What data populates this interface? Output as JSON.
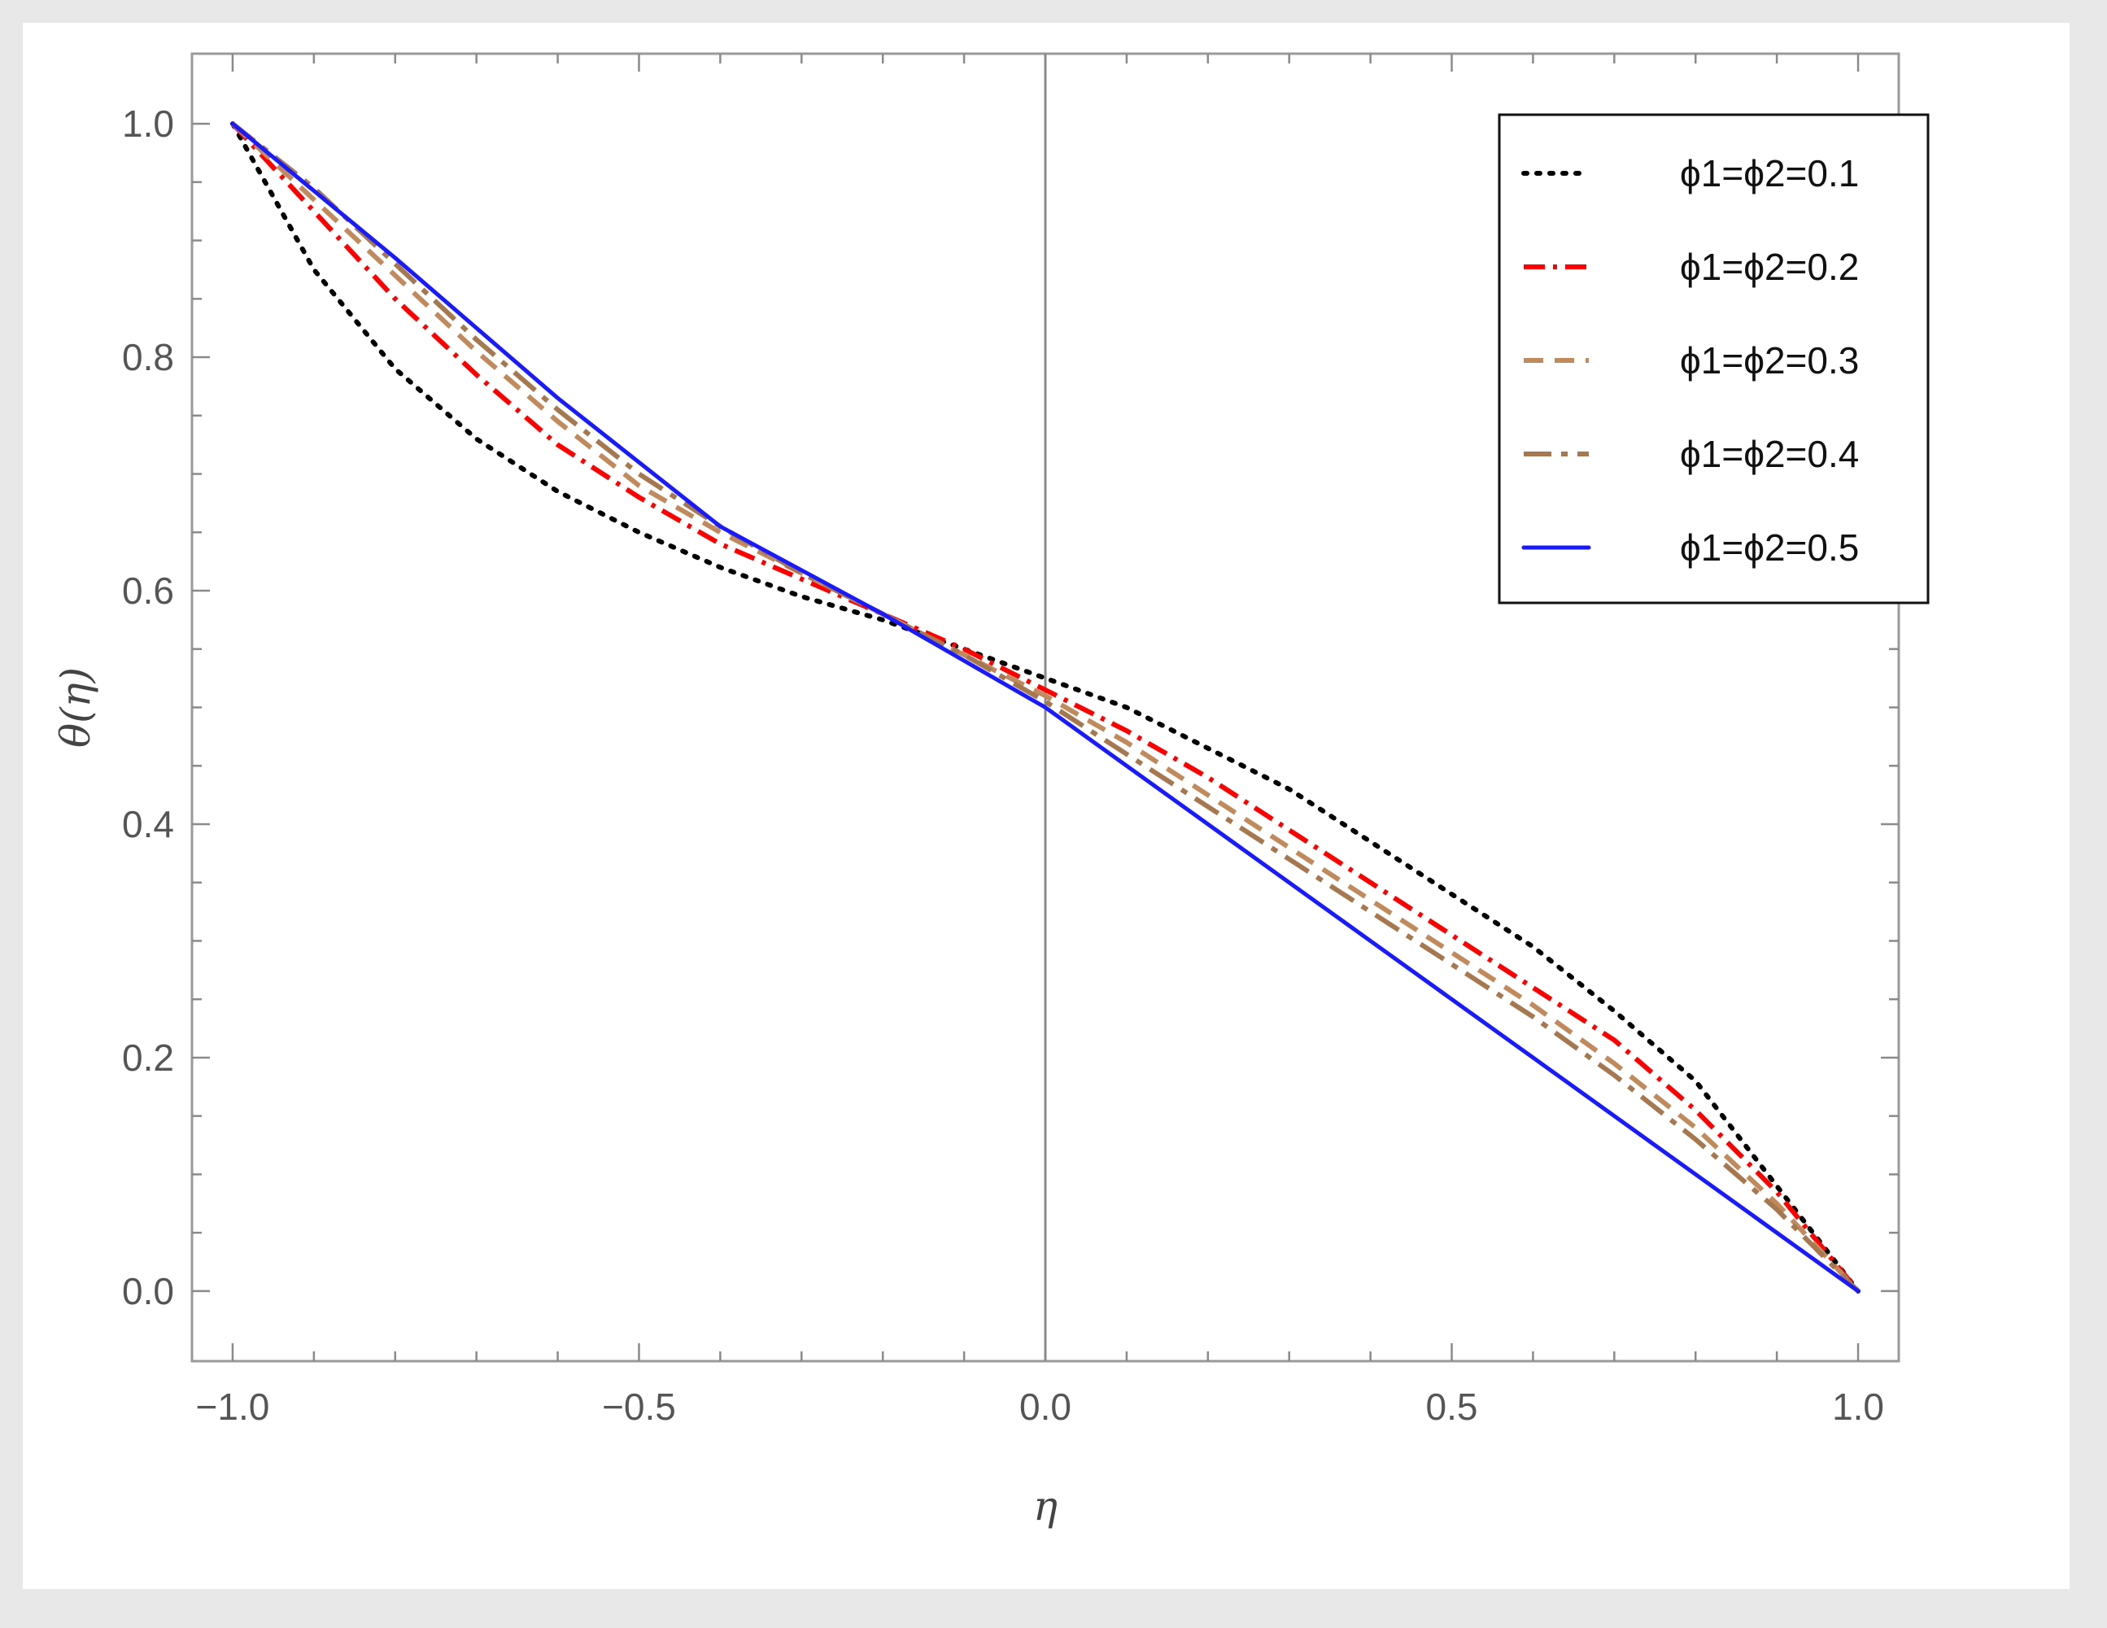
{
  "chart_data": {
    "type": "line",
    "title": "",
    "xlabel": "η",
    "ylabel": "θ(η)",
    "xlim": [
      -1.05,
      1.05
    ],
    "ylim": [
      -0.06,
      1.06
    ],
    "x_ticks": [
      -1.0,
      -0.5,
      0.0,
      0.5,
      1.0
    ],
    "x_tick_labels": [
      "−1.0",
      "−0.5",
      "0.0",
      "0.5",
      "1.0"
    ],
    "y_ticks": [
      0.0,
      0.2,
      0.4,
      0.6,
      0.8,
      1.0
    ],
    "y_tick_labels": [
      "0.0",
      "0.2",
      "0.4",
      "0.6",
      "0.8",
      "1.0"
    ],
    "grid": false,
    "legend_position": "top-right",
    "series": [
      {
        "name": "ϕ1=ϕ2=0.1",
        "color": "#000000",
        "style": "dotted",
        "x": [
          -1.0,
          -0.9,
          -0.8,
          -0.7,
          -0.6,
          -0.5,
          -0.4,
          -0.3,
          -0.2,
          -0.1,
          0.0,
          0.1,
          0.2,
          0.3,
          0.4,
          0.5,
          0.6,
          0.7,
          0.8,
          0.9,
          1.0
        ],
        "y": [
          1.0,
          0.875,
          0.79,
          0.73,
          0.685,
          0.65,
          0.62,
          0.595,
          0.575,
          0.55,
          0.525,
          0.5,
          0.465,
          0.43,
          0.385,
          0.34,
          0.295,
          0.24,
          0.18,
          0.09,
          0.0
        ]
      },
      {
        "name": "ϕ1=ϕ2=0.2",
        "color": "#ff0000",
        "style": "dash-dot",
        "x": [
          -1.0,
          -0.9,
          -0.8,
          -0.7,
          -0.6,
          -0.5,
          -0.4,
          -0.3,
          -0.2,
          -0.1,
          0.0,
          0.1,
          0.2,
          0.3,
          0.4,
          0.5,
          0.6,
          0.7,
          0.8,
          0.9,
          1.0
        ],
        "y": [
          1.0,
          0.925,
          0.85,
          0.785,
          0.725,
          0.68,
          0.64,
          0.61,
          0.58,
          0.55,
          0.515,
          0.48,
          0.44,
          0.395,
          0.35,
          0.305,
          0.26,
          0.215,
          0.155,
          0.085,
          0.0
        ]
      },
      {
        "name": "ϕ1=ϕ2=0.3",
        "color": "#c08a5c",
        "style": "dashed",
        "x": [
          -1.0,
          -0.9,
          -0.8,
          -0.7,
          -0.6,
          -0.5,
          -0.4,
          -0.3,
          -0.2,
          -0.1,
          0.0,
          0.1,
          0.2,
          0.3,
          0.4,
          0.5,
          0.6,
          0.7,
          0.8,
          0.9,
          1.0
        ],
        "y": [
          1.0,
          0.935,
          0.87,
          0.805,
          0.745,
          0.69,
          0.65,
          0.615,
          0.58,
          0.545,
          0.51,
          0.47,
          0.425,
          0.38,
          0.335,
          0.29,
          0.245,
          0.195,
          0.14,
          0.075,
          0.0
        ]
      },
      {
        "name": "ϕ1=ϕ2=0.4",
        "color": "#a67850",
        "style": "long-dash-dot",
        "x": [
          -1.0,
          -0.9,
          -0.8,
          -0.7,
          -0.6,
          -0.5,
          -0.4,
          -0.3,
          -0.2,
          -0.1,
          0.0,
          0.1,
          0.2,
          0.3,
          0.4,
          0.5,
          0.6,
          0.7,
          0.8,
          0.9,
          1.0
        ],
        "y": [
          1.0,
          0.945,
          0.88,
          0.815,
          0.755,
          0.7,
          0.655,
          0.615,
          0.58,
          0.545,
          0.505,
          0.46,
          0.415,
          0.37,
          0.325,
          0.28,
          0.235,
          0.185,
          0.13,
          0.07,
          0.0
        ]
      },
      {
        "name": "ϕ1=ϕ2=0.5",
        "color": "#1a1aff",
        "style": "solid",
        "x": [
          -1.0,
          -0.8,
          -0.6,
          -0.4,
          -0.2,
          0.0,
          0.2,
          0.4,
          0.6,
          0.8,
          1.0
        ],
        "y": [
          1.0,
          0.885,
          0.765,
          0.655,
          0.58,
          0.5,
          0.4,
          0.3,
          0.2,
          0.1,
          0.0
        ]
      }
    ]
  }
}
